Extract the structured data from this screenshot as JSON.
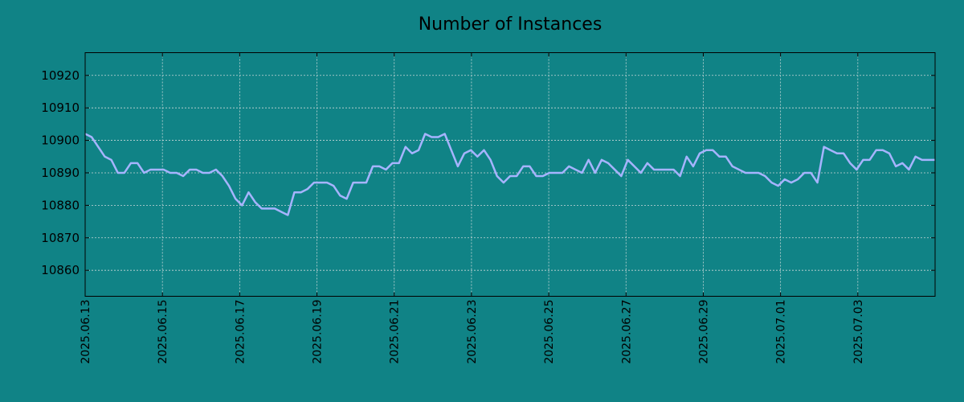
{
  "chart_data": {
    "type": "line",
    "title": "Number of Instances",
    "xlabel": "",
    "ylabel": "",
    "x_start": "2025.06.13",
    "x_end": "2025.07.05",
    "x_ticks": [
      "2025.06.13",
      "2025.06.15",
      "2025.06.17",
      "2025.06.19",
      "2025.06.21",
      "2025.06.23",
      "2025.06.25",
      "2025.06.27",
      "2025.06.29",
      "2025.07.01",
      "2025.07.03"
    ],
    "ylim": [
      10852,
      10927
    ],
    "y_ticks": [
      10860,
      10870,
      10880,
      10890,
      10900,
      10910,
      10920
    ],
    "grid": true,
    "colors": {
      "background": "#108386",
      "line": "#a6b4ff"
    },
    "series": [
      {
        "values": [
          10902,
          10901,
          10898,
          10895,
          10894,
          10890,
          10890,
          10893,
          10893,
          10890,
          10891,
          10891,
          10891,
          10890,
          10890,
          10889,
          10891,
          10891,
          10890,
          10890,
          10891,
          10889,
          10886,
          10882,
          10880,
          10884,
          10881,
          10879,
          10879,
          10879,
          10878,
          10877,
          10884,
          10884,
          10885,
          10887,
          10887,
          10887,
          10886,
          10883,
          10882,
          10887,
          10887,
          10887,
          10892,
          10892,
          10891,
          10893,
          10893,
          10898,
          10896,
          10897,
          10902,
          10901,
          10901,
          10902,
          10897,
          10892,
          10896,
          10897,
          10895,
          10897,
          10894,
          10889,
          10887,
          10889,
          10889,
          10892,
          10892,
          10889,
          10889,
          10890,
          10890,
          10890,
          10892,
          10891,
          10890,
          10894,
          10890,
          10894,
          10893,
          10891,
          10889,
          10894,
          10892,
          10890,
          10893,
          10891,
          10891,
          10891,
          10891,
          10889,
          10895,
          10892,
          10896,
          10897,
          10897,
          10895,
          10895,
          10892,
          10891,
          10890,
          10890,
          10890,
          10889,
          10887,
          10886,
          10888,
          10887,
          10888,
          10890,
          10890,
          10887,
          10898,
          10897,
          10896,
          10896,
          10893,
          10891,
          10894,
          10894,
          10897,
          10897,
          10896,
          10892,
          10893,
          10891,
          10895,
          10894,
          10894,
          10894
        ]
      }
    ]
  }
}
